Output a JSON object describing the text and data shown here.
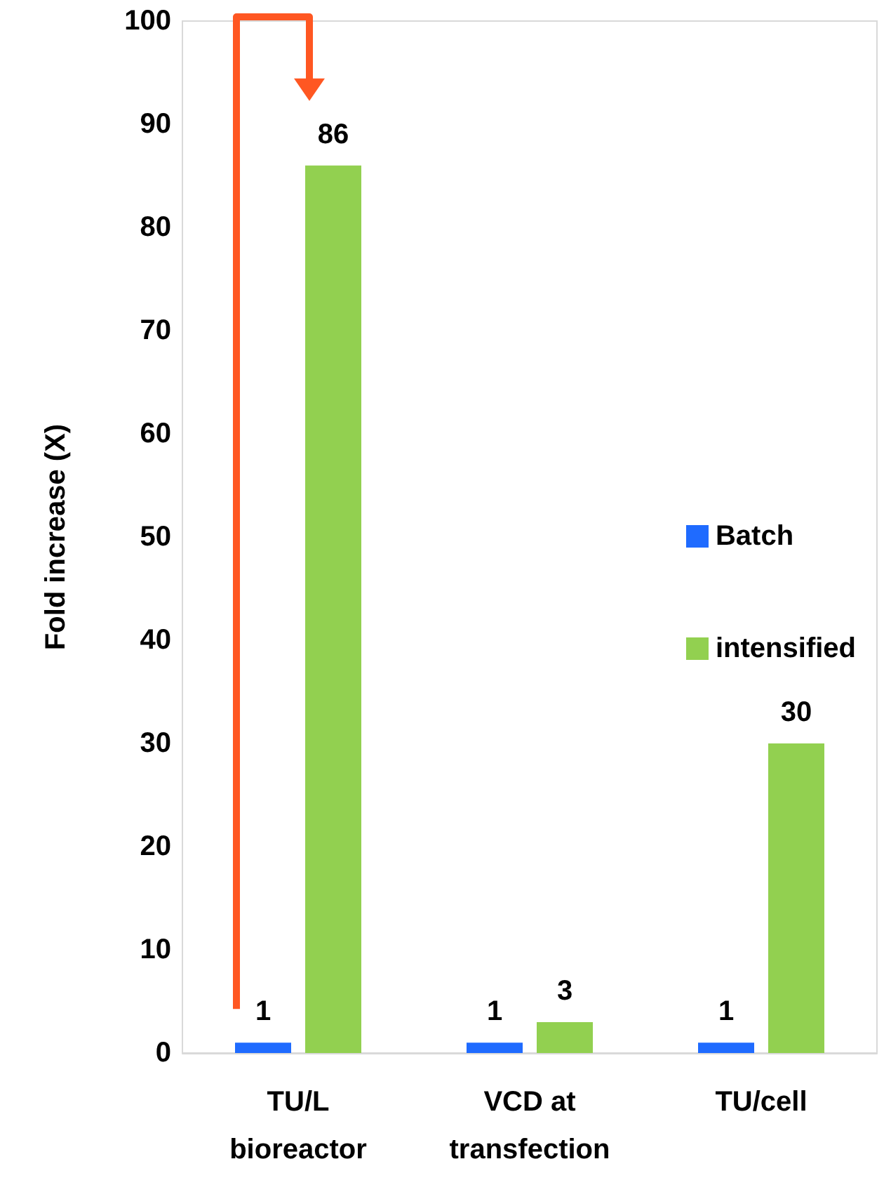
{
  "chart_data": {
    "type": "bar",
    "ylabel": "Fold increase (X)",
    "categories": [
      "TU/L\nbioreactor",
      "VCD at\ntransfection",
      "TU/cell"
    ],
    "series": [
      {
        "name": "Batch",
        "color": "#1f6bff",
        "values": [
          1,
          1,
          1
        ]
      },
      {
        "name": "intensified",
        "color": "#92d050",
        "values": [
          86,
          3,
          30
        ]
      }
    ],
    "ylim": [
      0,
      100
    ],
    "yticks": [
      0,
      10,
      20,
      30,
      40,
      50,
      60,
      70,
      80,
      90,
      100
    ],
    "grid": false,
    "legend": "right",
    "data_labels": true
  }
}
